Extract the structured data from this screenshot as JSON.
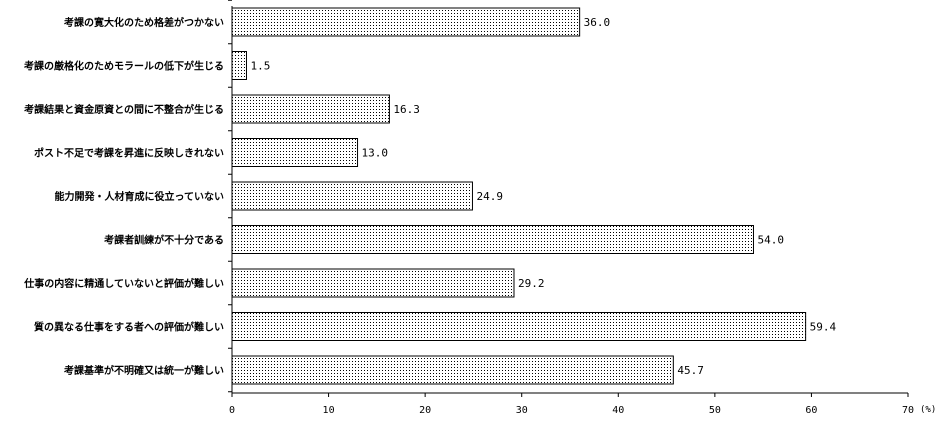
{
  "chart_data": {
    "type": "bar",
    "orientation": "horizontal",
    "categories": [
      "考課の寛大化のため格差がつかない",
      "考課の厳格化のためモラールの低下が生じる",
      "考課結果と資金原資との間に不整合が生じる",
      "ポスト不足で考課を昇進に反映しきれない",
      "能力開発・人材育成に役立っていない",
      "考課者訓練が不十分である",
      "仕事の内容に精通していないと評価が難しい",
      "質の異なる仕事をする者への評価が難しい",
      "考課基準が不明確又は統一が難しい"
    ],
    "values": [
      36.0,
      1.5,
      16.3,
      13.0,
      24.9,
      54.0,
      29.2,
      59.4,
      45.7
    ],
    "value_labels": [
      "36.0",
      "1.5",
      "16.3",
      "13.0",
      "24.9",
      "54.0",
      "29.2",
      "59.4",
      "45.7"
    ],
    "xlim": [
      0,
      70
    ],
    "xticks": [
      0,
      10,
      20,
      30,
      40,
      50,
      60,
      70
    ],
    "x_unit": "(%)",
    "bar_fill": "dotted",
    "grid": false,
    "legend": "none"
  }
}
